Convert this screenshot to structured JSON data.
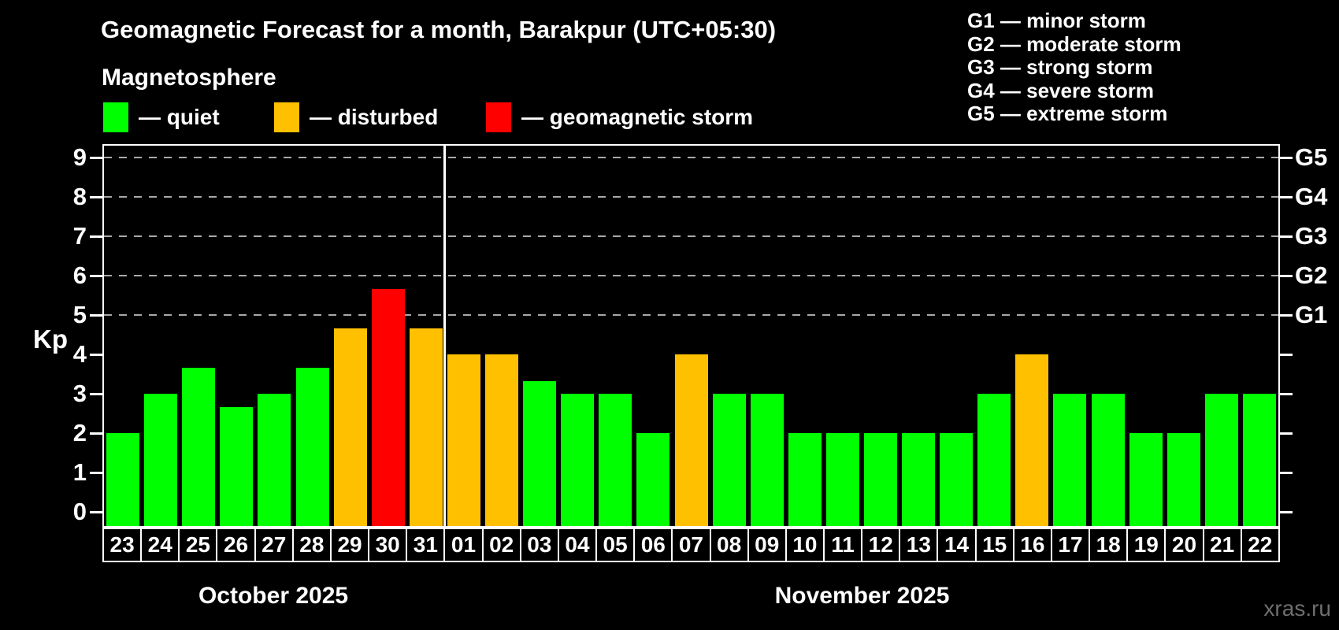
{
  "title": "Geomagnetic Forecast for a month, Barakpur (UTC+05:30)",
  "subtitle": "Magnetosphere",
  "watermark": "xras.ru",
  "legend": [
    {
      "key": "quiet",
      "label": "— quiet"
    },
    {
      "key": "disturbed",
      "label": "— disturbed"
    },
    {
      "key": "storm",
      "label": "— geomagnetic storm"
    }
  ],
  "storm_scale": [
    {
      "text": "G1 — minor storm"
    },
    {
      "text": "G2 — moderate storm"
    },
    {
      "text": "G3 — strong storm"
    },
    {
      "text": "G4 — severe storm"
    },
    {
      "text": "G5 — extreme storm"
    }
  ],
  "colors": {
    "quiet": "#00ff00",
    "disturbed": "#ffc000",
    "storm": "#ff0000",
    "grid": "#a9a9a9",
    "frame": "#ffffff",
    "background": "#000000",
    "watermark": "#6e6e6e"
  },
  "chart_data": {
    "type": "bar",
    "title": "Geomagnetic Forecast for a month, Barakpur (UTC+05:30)",
    "ylabel": "Kp",
    "ylim": [
      0,
      9.3
    ],
    "yticks": [
      0,
      1,
      2,
      3,
      4,
      5,
      6,
      7,
      8,
      9
    ],
    "gridlines_at": [
      5,
      6,
      7,
      8,
      9
    ],
    "grid": "dashed, only at storm levels 5-9",
    "legend_position": "top-left",
    "right_axis": [
      {
        "kp": 5,
        "label": "G1"
      },
      {
        "kp": 6,
        "label": "G2"
      },
      {
        "kp": 7,
        "label": "G3"
      },
      {
        "kp": 8,
        "label": "G4"
      },
      {
        "kp": 9,
        "label": "G5"
      }
    ],
    "months": [
      {
        "label": "October 2025",
        "days": 9
      },
      {
        "label": "November 2025",
        "days": 22
      }
    ],
    "categories": [
      "23",
      "24",
      "25",
      "26",
      "27",
      "28",
      "29",
      "30",
      "31",
      "01",
      "02",
      "03",
      "04",
      "05",
      "06",
      "07",
      "08",
      "09",
      "10",
      "11",
      "12",
      "13",
      "14",
      "15",
      "16",
      "17",
      "18",
      "19",
      "20",
      "21",
      "22"
    ],
    "bars": [
      {
        "day": "23",
        "kp": 2.0,
        "status": "quiet"
      },
      {
        "day": "24",
        "kp": 3.0,
        "status": "quiet"
      },
      {
        "day": "25",
        "kp": 3.67,
        "status": "quiet"
      },
      {
        "day": "26",
        "kp": 2.67,
        "status": "quiet"
      },
      {
        "day": "27",
        "kp": 3.0,
        "status": "quiet"
      },
      {
        "day": "28",
        "kp": 3.67,
        "status": "quiet"
      },
      {
        "day": "29",
        "kp": 4.67,
        "status": "disturbed"
      },
      {
        "day": "30",
        "kp": 5.67,
        "status": "storm"
      },
      {
        "day": "31",
        "kp": 4.67,
        "status": "disturbed"
      },
      {
        "day": "01",
        "kp": 4.0,
        "status": "disturbed"
      },
      {
        "day": "02",
        "kp": 4.0,
        "status": "disturbed"
      },
      {
        "day": "03",
        "kp": 3.33,
        "status": "quiet"
      },
      {
        "day": "04",
        "kp": 3.0,
        "status": "quiet"
      },
      {
        "day": "05",
        "kp": 3.0,
        "status": "quiet"
      },
      {
        "day": "06",
        "kp": 2.0,
        "status": "quiet"
      },
      {
        "day": "07",
        "kp": 4.0,
        "status": "disturbed"
      },
      {
        "day": "08",
        "kp": 3.0,
        "status": "quiet"
      },
      {
        "day": "09",
        "kp": 3.0,
        "status": "quiet"
      },
      {
        "day": "10",
        "kp": 2.0,
        "status": "quiet"
      },
      {
        "day": "11",
        "kp": 2.0,
        "status": "quiet"
      },
      {
        "day": "12",
        "kp": 2.0,
        "status": "quiet"
      },
      {
        "day": "13",
        "kp": 2.0,
        "status": "quiet"
      },
      {
        "day": "14",
        "kp": 2.0,
        "status": "quiet"
      },
      {
        "day": "15",
        "kp": 3.0,
        "status": "quiet"
      },
      {
        "day": "16",
        "kp": 4.0,
        "status": "disturbed"
      },
      {
        "day": "17",
        "kp": 3.0,
        "status": "quiet"
      },
      {
        "day": "18",
        "kp": 3.0,
        "status": "quiet"
      },
      {
        "day": "19",
        "kp": 2.0,
        "status": "quiet"
      },
      {
        "day": "20",
        "kp": 2.0,
        "status": "quiet"
      },
      {
        "day": "21",
        "kp": 3.0,
        "status": "quiet"
      },
      {
        "day": "22",
        "kp": 3.0,
        "status": "quiet"
      }
    ]
  }
}
